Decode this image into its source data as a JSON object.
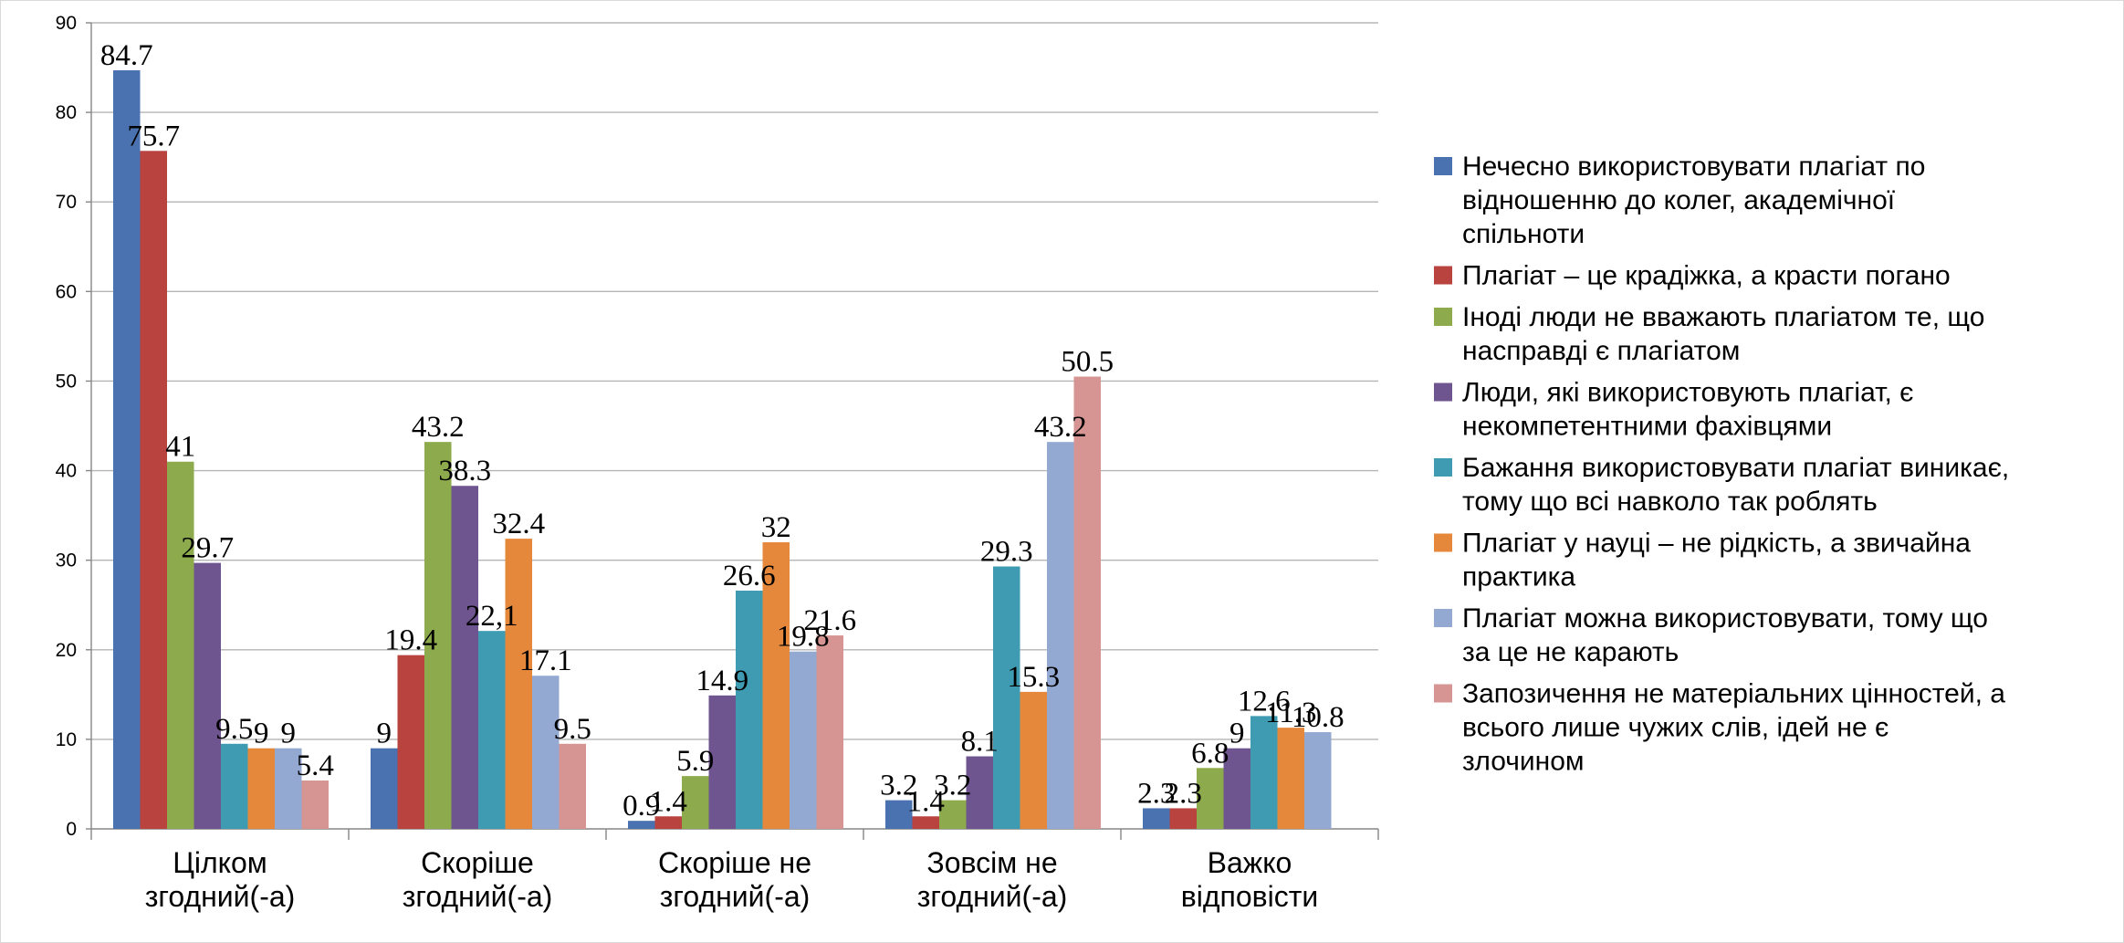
{
  "chart_data": {
    "type": "bar",
    "ylim": [
      0,
      90
    ],
    "yticks": [
      "0",
      "10",
      "20",
      "30",
      "40",
      "50",
      "60",
      "70",
      "80",
      "90"
    ],
    "grid": true,
    "legend_position": "right",
    "categories": [
      [
        "Цілком",
        "згодний(-а)"
      ],
      [
        "Скоріше",
        "згодний(-а)"
      ],
      [
        "Скоріше не",
        "згодний(-а)"
      ],
      [
        "Зовсім не",
        "згодний(-а)"
      ],
      [
        "Важко",
        "відповісти"
      ]
    ],
    "series": [
      {
        "name": [
          "Нечесно використовувати плагіат по",
          "відношенню до колег, академічної",
          "спільноти"
        ],
        "color": "#4a72b0",
        "values": [
          84.7,
          9,
          0.9,
          3.2,
          2.3
        ],
        "labels": [
          "84.7",
          "9",
          "0.9",
          "3.2",
          "2.3"
        ]
      },
      {
        "name": [
          "Плагіат – це крадіжка, а красти погано"
        ],
        "color": "#b8433f",
        "values": [
          75.7,
          19.4,
          1.4,
          1.4,
          2.3
        ],
        "labels": [
          "75.7",
          "19.4",
          "1.4",
          "1.4",
          "2.3"
        ]
      },
      {
        "name": [
          "Іноді люди не вважають плагіатом те, що",
          "насправді є плагіатом"
        ],
        "color": "#8dab4c",
        "values": [
          41,
          43.2,
          5.9,
          3.2,
          6.8
        ],
        "labels": [
          "41",
          "43.2",
          "5.9",
          "3.2",
          "6.8"
        ]
      },
      {
        "name": [
          "Люди, які використовують плагіат, є",
          "некомпетентними фахівцями"
        ],
        "color": "#6f558f",
        "values": [
          29.7,
          38.3,
          14.9,
          8.1,
          9
        ],
        "labels": [
          "29.7",
          "38.3",
          "14.9",
          "8.1",
          "9"
        ]
      },
      {
        "name": [
          "Бажання використовувати плагіат виникає,",
          "тому що всі навколо так роблять"
        ],
        "color": "#3e9bb2",
        "values": [
          9.5,
          22.1,
          26.6,
          29.3,
          12.6
        ],
        "labels": [
          "9.5",
          "22,1",
          "26.6",
          "29.3",
          "12.6"
        ]
      },
      {
        "name": [
          "Плагіат у науці – не рідкість, а звичайна",
          "практика"
        ],
        "color": "#e5883b",
        "values": [
          9,
          32.4,
          32,
          15.3,
          11.3
        ],
        "labels": [
          "9",
          "32.4",
          "32",
          "15.3",
          "11.3"
        ]
      },
      {
        "name": [
          "Плагіат можна використовувати, тому що",
          "за це не карають"
        ],
        "color": "#93a9d2",
        "values": [
          9,
          17.1,
          19.8,
          43.2,
          10.8
        ],
        "labels": [
          "9",
          "17.1",
          "19.8",
          "43.2",
          "10.8"
        ]
      },
      {
        "name": [
          "Запозичення не матеріальних цінностей, а",
          "всього лише чужих слів, ідей не є",
          "злочином"
        ],
        "color": "#d69593",
        "values": [
          5.4,
          9.5,
          21.6,
          50.5,
          null
        ],
        "labels": [
          "5.4",
          "9.5",
          "21.6",
          "50.5",
          ""
        ]
      }
    ]
  }
}
